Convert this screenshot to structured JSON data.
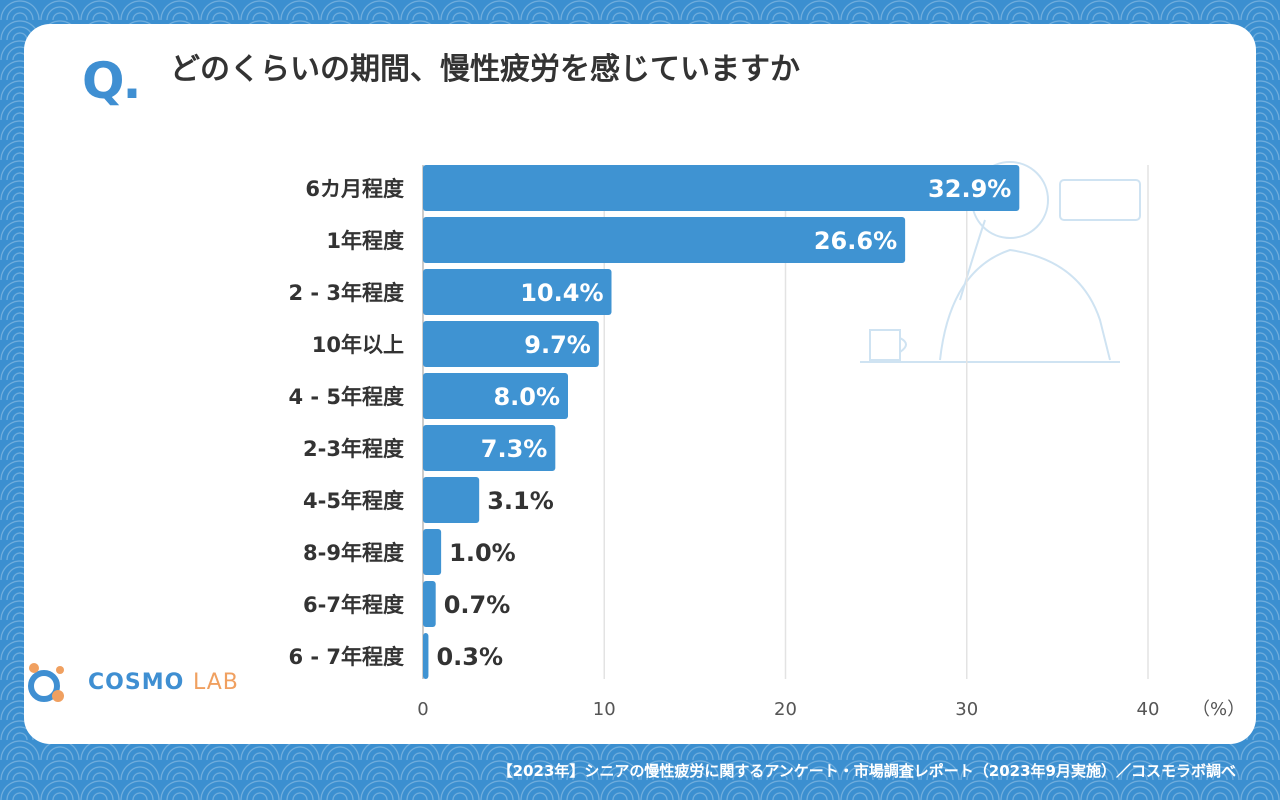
{
  "question": {
    "mark": "Q.",
    "title": "どのくらいの期間、慢性疲労を感じていますか"
  },
  "chart_data": {
    "type": "bar",
    "orientation": "horizontal",
    "categories": [
      "6カ月程度",
      "1年程度",
      "2 - 3年程度",
      "10年以上",
      "4 - 5年程度",
      "2-3年程度",
      "4-5年程度",
      "8-9年程度",
      "6-7年程度",
      "6 - 7年程度"
    ],
    "values": [
      32.9,
      26.6,
      10.4,
      9.7,
      8.0,
      7.3,
      3.1,
      1.0,
      0.7,
      0.3
    ],
    "data_labels": [
      "32.9%",
      "26.6%",
      "10.4%",
      "9.7%",
      "8.0%",
      "7.3%",
      "3.1%",
      "1.0%",
      "0.7%",
      "0.3%"
    ],
    "xlim": [
      0,
      40
    ],
    "x_ticks": [
      0,
      10,
      20,
      30,
      40
    ],
    "unit_label": "（%）",
    "grid": true,
    "bar_color": "#3f93d2"
  },
  "logo": {
    "name": "COSMO",
    "suffix": "LAB"
  },
  "footer": "【2023年】シニアの慢性疲労に関するアンケート・市場調査レポート（2023年9月実施）／コスモラボ調べ"
}
